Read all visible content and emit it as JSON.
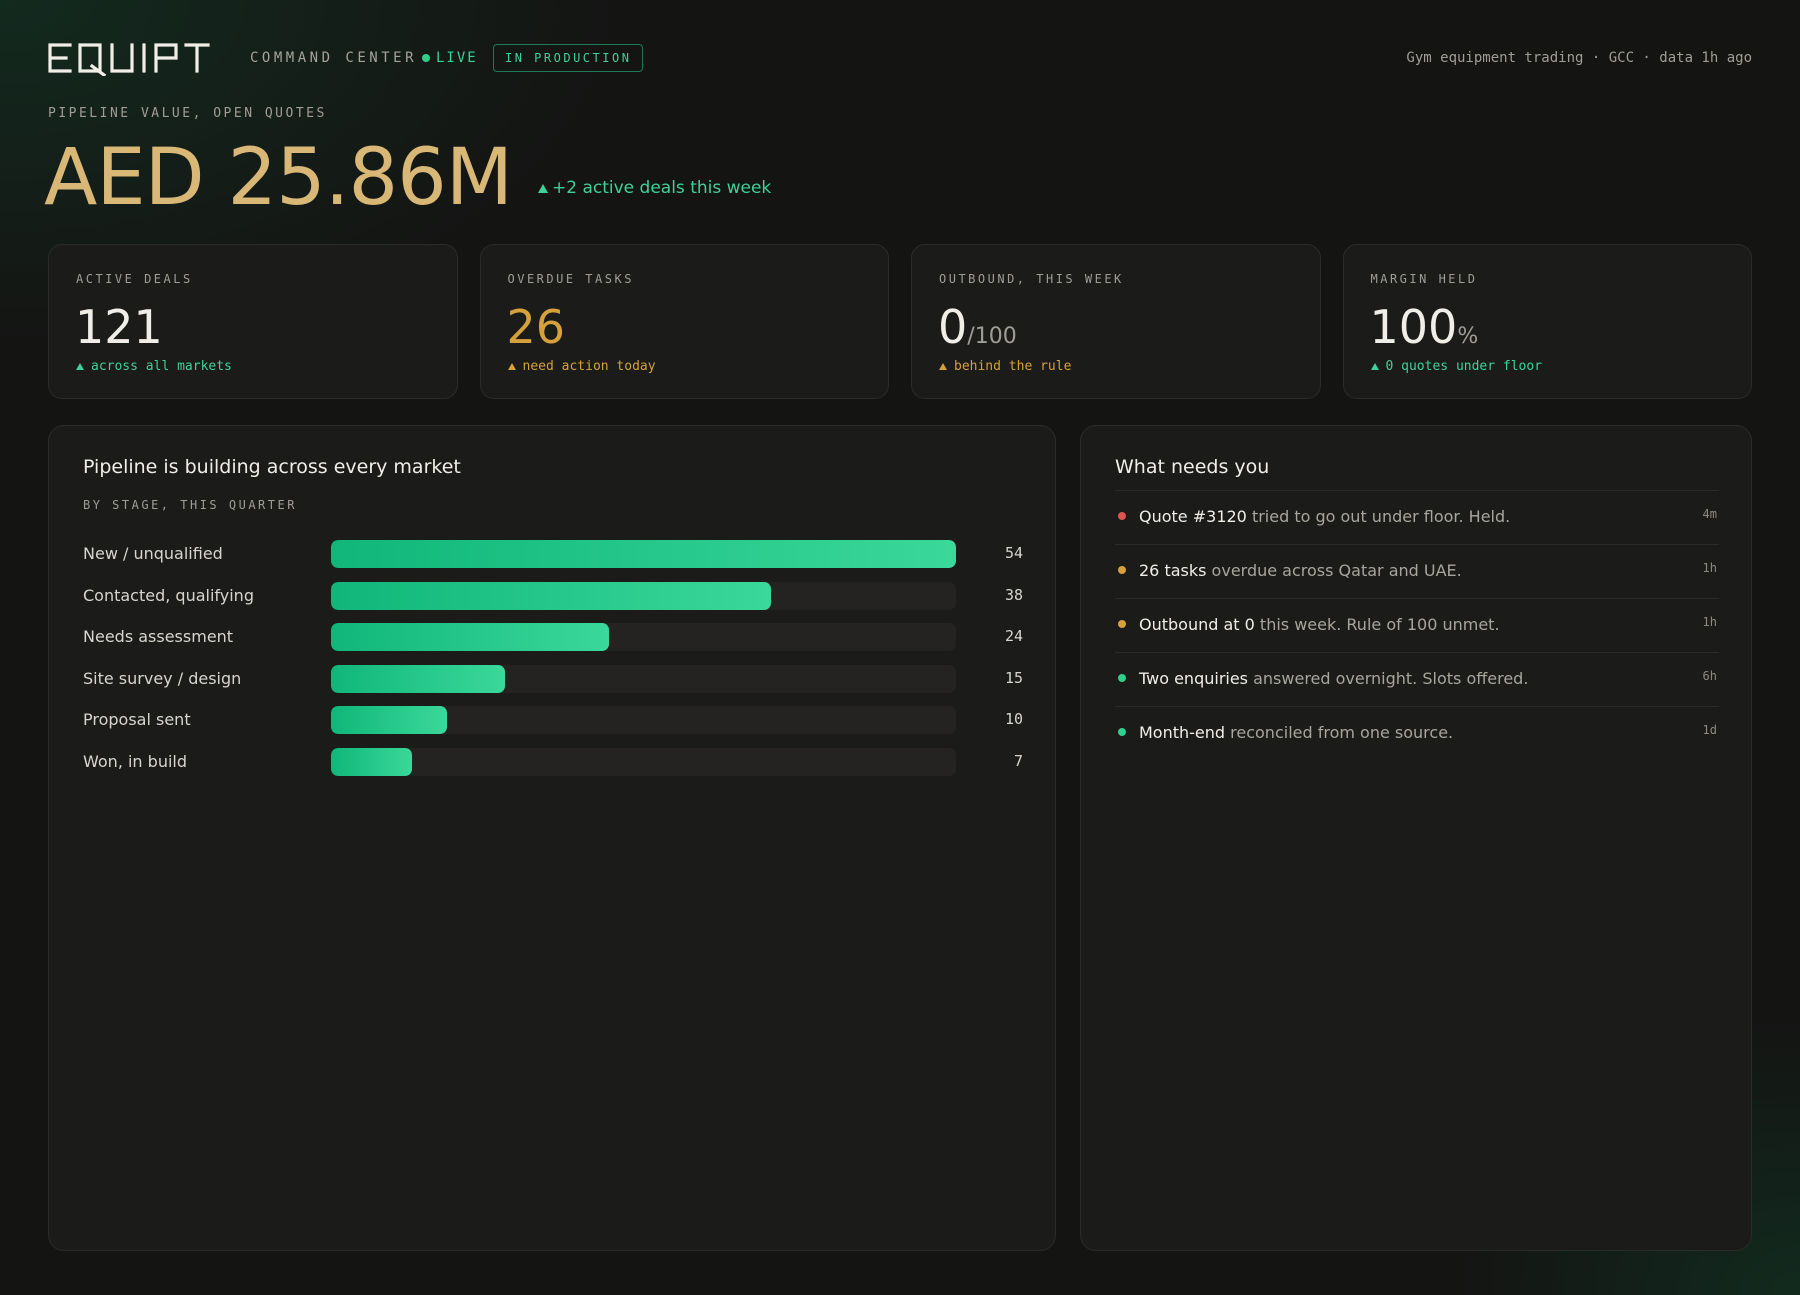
{
  "header": {
    "logo_text": "EQUIPT",
    "section_title": "COMMAND CENTER",
    "live_label": "LIVE",
    "env_badge": "IN PRODUCTION",
    "meta": "Gym equipment trading · GCC · data 1h ago"
  },
  "pipeline": {
    "label": "PIPELINE VALUE, OPEN QUOTES",
    "value": "AED 25.86M",
    "delta": "+2 active deals this week"
  },
  "kpis": [
    {
      "label": "ACTIVE DEALS",
      "value": "121",
      "unit": "",
      "note": "across all markets",
      "tone": "green"
    },
    {
      "label": "OVERDUE TASKS",
      "value": "26",
      "unit": "",
      "note": "need action today",
      "tone": "amber"
    },
    {
      "label": "OUTBOUND, THIS WEEK",
      "value": "0",
      "unit": "/100",
      "note": "behind the rule",
      "tone": "amber"
    },
    {
      "label": "MARGIN HELD",
      "value": "100",
      "unit": "%",
      "note": "0 quotes under floor",
      "tone": "green"
    }
  ],
  "pipeline_panel": {
    "title": "Pipeline is building across every market",
    "subtitle": "BY STAGE, THIS QUARTER"
  },
  "chart_data": {
    "type": "bar",
    "orientation": "horizontal",
    "categories": [
      "New / unqualified",
      "Contacted, qualifying",
      "Needs assessment",
      "Site survey / design",
      "Proposal sent",
      "Won, in build"
    ],
    "values": [
      54,
      38,
      24,
      15,
      10,
      7
    ],
    "xlim": [
      0,
      54
    ]
  },
  "needs_panel": {
    "title": "What needs you",
    "items": [
      {
        "strong": "Quote #3120",
        "text": " tried to go out under floor. Held.",
        "time": "4m",
        "status_color": "#e0544f"
      },
      {
        "strong": "26 tasks",
        "text": " overdue across Qatar and UAE.",
        "time": "1h",
        "status_color": "#d6a13a"
      },
      {
        "strong": "Outbound at 0",
        "text": " this week. Rule of 100 unmet.",
        "time": "1h",
        "status_color": "#d6a13a"
      },
      {
        "strong": "Two enquiries",
        "text": " answered overnight. Slots offered.",
        "time": "6h",
        "status_color": "#2fcf8c"
      },
      {
        "strong": "Month-end",
        "text": " reconciled from one source.",
        "time": "1d",
        "status_color": "#2fcf8c"
      }
    ]
  }
}
